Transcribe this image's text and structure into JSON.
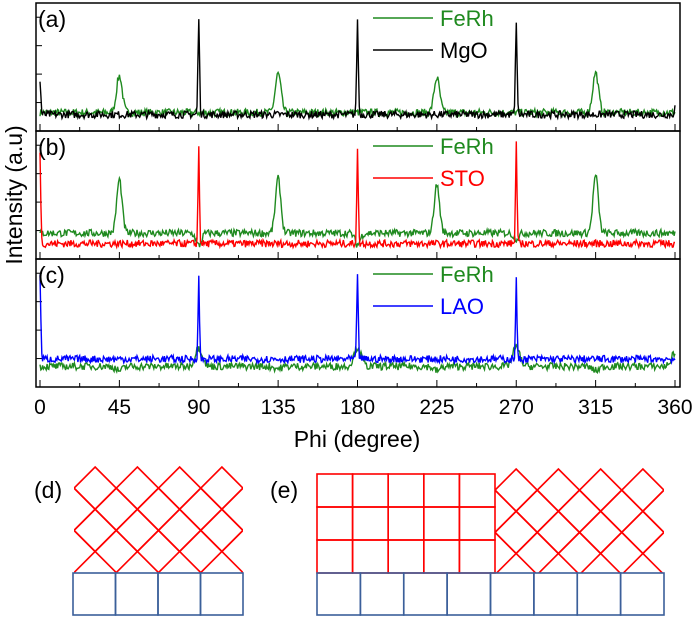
{
  "chart_data": {
    "type": "line",
    "xlabel": "Phi (degree)",
    "ylabel": "Intensity (a.u)",
    "xlim": [
      0,
      360
    ],
    "xticks": [
      "0",
      "45",
      "90",
      "135",
      "180",
      "225",
      "270",
      "315",
      "360"
    ],
    "grid": false,
    "legend_placement": "top-right",
    "y_tick_labels_shown": false,
    "panels": [
      {
        "label": "(a)",
        "series": [
          {
            "name": "FeRh",
            "color": "#1f8a1f",
            "baseline": 0.1,
            "peaks": [
              [
                45,
                0.45
              ],
              [
                135,
                0.47
              ],
              [
                225,
                0.43
              ],
              [
                315,
                0.48
              ]
            ],
            "peak_width": 1.6
          },
          {
            "name": "MgO",
            "color": "#000000",
            "baseline": 0.08,
            "peaks": [
              [
                0,
                0.4
              ],
              [
                90,
                1.0
              ],
              [
                180,
                0.97
              ],
              [
                270,
                0.98
              ],
              [
                360,
                0.15
              ]
            ],
            "peak_width": 0.45
          }
        ]
      },
      {
        "label": "(b)",
        "series": [
          {
            "name": "FeRh",
            "color": "#1f8a1f",
            "baseline": 0.17,
            "peaks": [
              [
                45,
                0.68
              ],
              [
                135,
                0.69
              ],
              [
                225,
                0.63
              ],
              [
                315,
                0.72
              ],
              [
                90,
                0.05
              ],
              [
                180,
                0.06
              ],
              [
                270,
                0.12
              ]
            ],
            "peak_width": 1.5
          },
          {
            "name": "STO",
            "color": "#ff0000",
            "baseline": 0.07,
            "peaks": [
              [
                0,
                0.95
              ],
              [
                90,
                1.0
              ],
              [
                180,
                0.99
              ],
              [
                270,
                1.05
              ]
            ],
            "peak_width": 0.4
          }
        ]
      },
      {
        "label": "(c)",
        "series": [
          {
            "name": "FeRh",
            "color": "#1f8a1f",
            "baseline": 0.12,
            "peaks": [
              [
                45,
                0.08
              ],
              [
                90,
                0.3
              ],
              [
                135,
                0.1
              ],
              [
                180,
                0.3
              ],
              [
                225,
                0.08
              ],
              [
                270,
                0.3
              ],
              [
                315,
                0.08
              ],
              [
                360,
                0.25
              ]
            ],
            "peak_width": 2.0
          },
          {
            "name": "LAO",
            "color": "#0000ff",
            "baseline": 0.19,
            "peaks": [
              [
                0,
                1.0
              ],
              [
                90,
                0.97
              ],
              [
                180,
                1.02
              ],
              [
                270,
                0.94
              ]
            ],
            "peak_width": 0.4
          }
        ]
      }
    ]
  },
  "diagrams": {
    "d": {
      "label": "(d)",
      "film_color": "#ff0000",
      "substrate_color": "#3b5f9a",
      "substrate_cells": 4,
      "film": "rotated-45"
    },
    "e": {
      "label": "(e)",
      "film_color": "#ff0000",
      "substrate_color": "#3b5f9a",
      "substrate_cells": 8,
      "film": "cube-on-cube + rotated-45",
      "cube_grid": [
        5,
        3
      ]
    }
  }
}
